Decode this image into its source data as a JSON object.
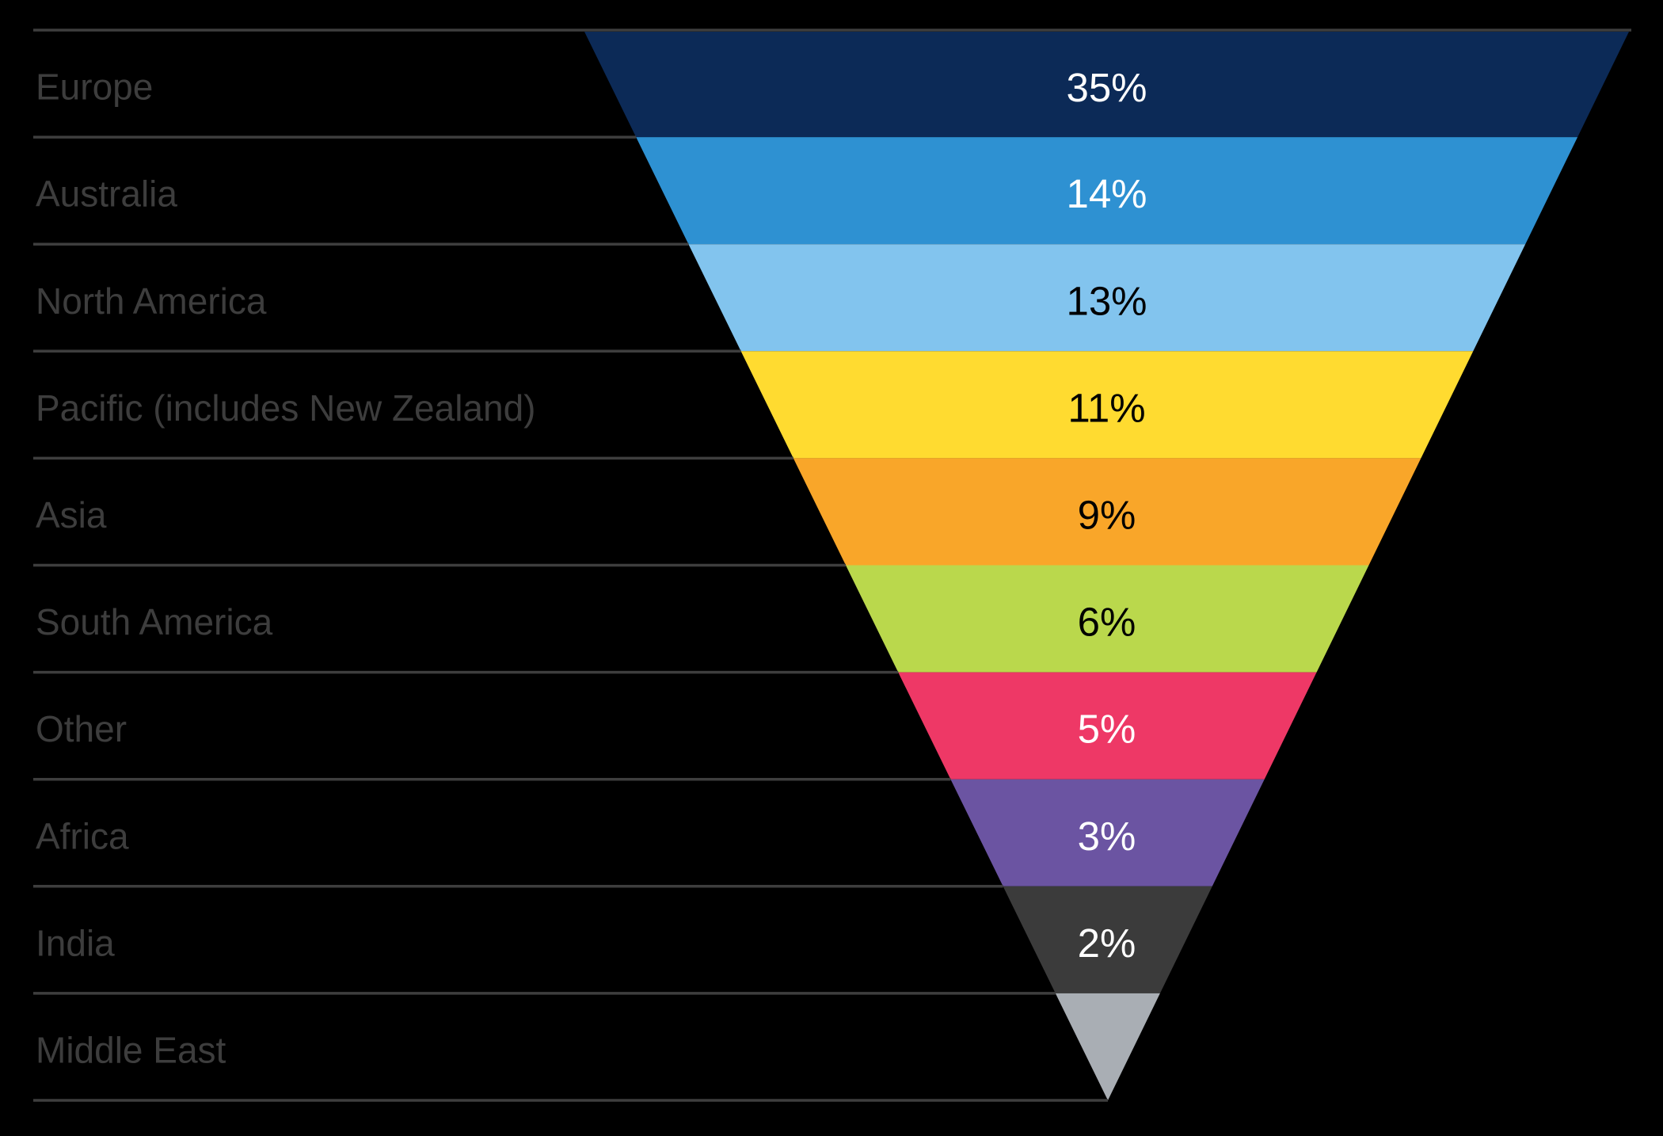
{
  "chart_data": {
    "type": "funnel",
    "orientation": "inverted-pyramid",
    "title": "",
    "categories": [
      "Europe",
      "Australia",
      "North America",
      "Pacific (includes New Zealand)",
      "Asia",
      "South America",
      "Other",
      "Africa",
      "India",
      "Middle East"
    ],
    "values": [
      35,
      14,
      13,
      11,
      9,
      6,
      5,
      3,
      2,
      null
    ],
    "value_labels": [
      "35%",
      "14%",
      "13%",
      "11%",
      "9%",
      "6%",
      "5%",
      "3%",
      "2%",
      ""
    ],
    "segment_colors": [
      "#0c2a57",
      "#2e91d2",
      "#82c4ee",
      "#ffdb30",
      "#f9a629",
      "#bad84c",
      "#ee3866",
      "#6b54a2",
      "#3b3b3b",
      "#a9aeb4"
    ],
    "value_label_colors": [
      "#ffffff",
      "#ffffff",
      "#000000",
      "#000000",
      "#000000",
      "#000000",
      "#ffffff",
      "#ffffff",
      "#ffffff",
      ""
    ],
    "background_color": "#000000",
    "category_label_color": "#3d3d3d",
    "divider_line_color": "#3e3e3e",
    "legend_position": "left",
    "grid": "horizontal-dividers"
  }
}
